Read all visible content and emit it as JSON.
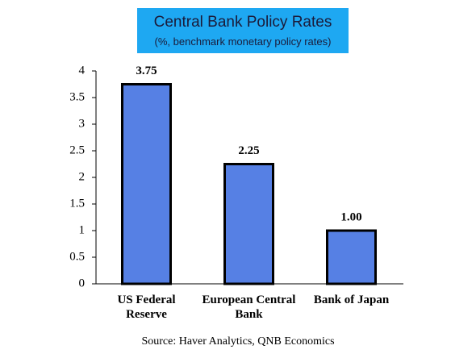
{
  "chart_data": {
    "type": "bar",
    "title": "Central Bank Policy Rates",
    "subtitle": "(%, benchmark monetary policy rates)",
    "categories": [
      "US Federal Reserve",
      "European Central Bank",
      "Bank of Japan"
    ],
    "values": [
      3.75,
      2.25,
      1.0
    ],
    "value_labels": [
      "3.75",
      "2.25",
      "1.00"
    ],
    "color": "#5680e4",
    "ylim": [
      0,
      4
    ],
    "yticks": [
      0,
      0.5,
      1,
      1.5,
      2,
      2.5,
      3,
      3.5,
      4
    ],
    "grid": false,
    "source": "Source: Haver Analytics, QNB Economics"
  }
}
